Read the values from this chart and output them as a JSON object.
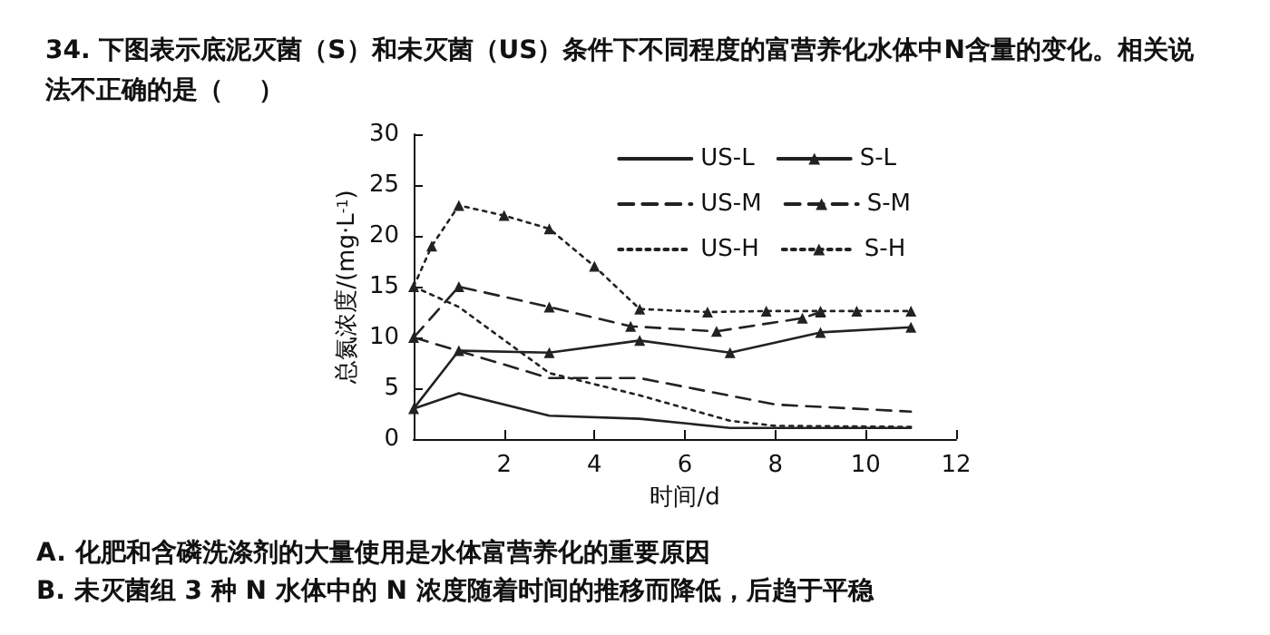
{
  "chart_data": {
    "type": "line",
    "title": "34. 下图表示底泥灭菌（S）和未灭菌（US）条件下不同程度的富营养化水体中N含量的变化。相关说法不正确的是（    ）",
    "xlabel": "时间/d",
    "ylabel": "总氮浓度/(mg·L$^{-1}$)",
    "xlim": [
      0,
      12
    ],
    "xticks": [
      2,
      4,
      6,
      8,
      10,
      12
    ],
    "ylim": [
      0,
      30
    ],
    "yticks": [
      0,
      5,
      10,
      15,
      20,
      25,
      30
    ],
    "grid": false,
    "legend": "top right",
    "series": [
      {
        "name": "US-L",
        "color": "#222222",
        "marker": "none",
        "line_style": "solid",
        "x": [
          0,
          1,
          3,
          5,
          7,
          9,
          11
        ],
        "values": [
          3,
          4.5,
          2.3,
          2,
          1.1,
          1.1,
          1.1
        ]
      },
      {
        "name": "S-L",
        "color": "#222222",
        "marker": "triangle",
        "line_style": "solid",
        "x": [
          0,
          1,
          3,
          5,
          7,
          9,
          11
        ],
        "values": [
          3,
          8.7,
          8.5,
          9.7,
          8.5,
          10.5,
          11
        ]
      },
      {
        "name": "US-M",
        "color": "#222222",
        "marker": "none",
        "line_style": "dashed",
        "x": [
          0,
          3,
          5,
          8,
          11
        ],
        "values": [
          10,
          6,
          6,
          3.4,
          2.7
        ]
      },
      {
        "name": "S-M",
        "color": "#222222",
        "marker": "triangle",
        "line_style": "dashed",
        "x": [
          0,
          1,
          3,
          4.8,
          6.7,
          8.6,
          9
        ],
        "values": [
          10,
          15,
          13,
          11.1,
          10.6,
          11.9,
          12.5
        ]
      },
      {
        "name": "US-H",
        "color": "#222222",
        "marker": "none",
        "line_style": "dotted",
        "x": [
          0,
          1,
          3,
          5,
          7,
          8,
          11
        ],
        "values": [
          15,
          13,
          6.5,
          4.3,
          1.8,
          1.3,
          1.2
        ]
      },
      {
        "name": "S-H",
        "color": "#222222",
        "marker": "triangle",
        "line_style": "dotted",
        "x": [
          0,
          0.4,
          1,
          2,
          3,
          4,
          5,
          6.5,
          7.8,
          9,
          9.8,
          11
        ],
        "values": [
          15,
          19,
          23,
          22,
          20.7,
          17,
          12.8,
          12.5,
          12.6,
          12.6,
          12.6,
          12.6
        ]
      }
    ],
    "annotations": [
      "A. 化肥和含磷洗涤剂的大量使用是水体富营养化的重要原因",
      "B. 未灭菌组 3 种 N 水体中的 N 浓度随着时间的推移而降低，后趋于平稳"
    ]
  }
}
